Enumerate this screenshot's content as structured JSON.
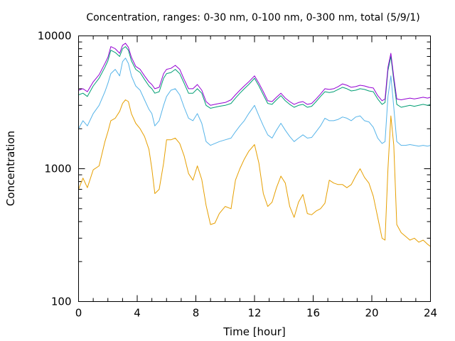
{
  "chart_data": {
    "type": "line",
    "title": "Concentration, ranges: 0-30 nm, 0-100 nm, 0-300 nm, total (5/9/1)",
    "xlabel": "Time [hour]",
    "ylabel": "Concentration",
    "xlim": [
      0,
      24
    ],
    "ylim": [
      100,
      10000
    ],
    "yscale": "log",
    "grid": false,
    "legend": "none",
    "xticks": [
      0,
      4,
      8,
      12,
      16,
      20,
      24
    ],
    "xtick_labels": [
      "0",
      "4",
      "8",
      "12",
      "16",
      "20",
      "24"
    ],
    "yticks": [
      100,
      1000,
      10000
    ],
    "ytick_labels": [
      "100",
      "1000",
      "10000"
    ],
    "series": [
      {
        "color": "#e69f00",
        "x": [
          0,
          0.3,
          0.6,
          1,
          1.4,
          1.8,
          2,
          2.2,
          2.5,
          2.8,
          3,
          3.2,
          3.4,
          3.6,
          3.9,
          4.2,
          4.5,
          4.8,
          5,
          5.2,
          5.5,
          5.8,
          6,
          6.3,
          6.6,
          6.9,
          7.2,
          7.5,
          7.8,
          8.1,
          8.4,
          8.7,
          9,
          9.3,
          9.6,
          10,
          10.4,
          10.7,
          11,
          11.3,
          11.6,
          12,
          12.3,
          12.6,
          12.9,
          13.2,
          13.5,
          13.8,
          14.1,
          14.4,
          14.7,
          15,
          15.3,
          15.6,
          15.9,
          16.2,
          16.5,
          16.8,
          17.1,
          17.4,
          17.7,
          18,
          18.3,
          18.6,
          18.9,
          19.2,
          19.5,
          19.8,
          20.1,
          20.4,
          20.7,
          20.9,
          21.1,
          21.3,
          21.5,
          21.7,
          22,
          22.3,
          22.6,
          22.9,
          23.2,
          23.5,
          23.8,
          24
        ],
        "values": [
          700,
          850,
          720,
          980,
          1050,
          1600,
          1900,
          2300,
          2400,
          2700,
          3100,
          3300,
          3200,
          2600,
          2200,
          2000,
          1750,
          1400,
          1000,
          650,
          700,
          1100,
          1650,
          1650,
          1700,
          1550,
          1250,
          920,
          820,
          1050,
          830,
          530,
          380,
          390,
          460,
          520,
          500,
          820,
          1000,
          1180,
          1350,
          1520,
          1100,
          650,
          520,
          560,
          720,
          880,
          780,
          520,
          430,
          560,
          640,
          460,
          450,
          480,
          500,
          550,
          820,
          780,
          760,
          760,
          720,
          760,
          880,
          1000,
          860,
          780,
          620,
          430,
          300,
          290,
          1000,
          2500,
          1500,
          380,
          330,
          310,
          290,
          300,
          280,
          290,
          270,
          260
        ]
      },
      {
        "color": "#56b4e9",
        "x": [
          0,
          0.3,
          0.6,
          1,
          1.4,
          1.8,
          2,
          2.2,
          2.5,
          2.8,
          3,
          3.2,
          3.4,
          3.6,
          3.9,
          4.2,
          4.5,
          4.8,
          5,
          5.2,
          5.5,
          5.8,
          6,
          6.3,
          6.6,
          6.9,
          7.2,
          7.5,
          7.8,
          8.1,
          8.4,
          8.7,
          9,
          9.3,
          9.6,
          10,
          10.4,
          10.7,
          11,
          11.3,
          11.6,
          12,
          12.3,
          12.6,
          12.9,
          13.2,
          13.5,
          13.8,
          14.1,
          14.4,
          14.7,
          15,
          15.3,
          15.6,
          15.9,
          16.2,
          16.5,
          16.8,
          17.1,
          17.4,
          17.7,
          18,
          18.3,
          18.6,
          18.9,
          19.2,
          19.5,
          19.8,
          20.1,
          20.4,
          20.7,
          20.9,
          21.1,
          21.3,
          21.5,
          21.7,
          22,
          22.3,
          22.6,
          22.9,
          23.2,
          23.5,
          23.8,
          24
        ],
        "values": [
          2000,
          2300,
          2100,
          2600,
          3000,
          3800,
          4400,
          5200,
          5600,
          5000,
          6400,
          6800,
          6200,
          5000,
          4200,
          3900,
          3300,
          2800,
          2600,
          2100,
          2300,
          3000,
          3500,
          3900,
          4000,
          3600,
          2900,
          2400,
          2300,
          2600,
          2200,
          1600,
          1500,
          1550,
          1600,
          1650,
          1700,
          1900,
          2100,
          2300,
          2600,
          3000,
          2500,
          2100,
          1800,
          1700,
          1950,
          2200,
          1950,
          1750,
          1600,
          1700,
          1800,
          1700,
          1720,
          1900,
          2100,
          2400,
          2300,
          2300,
          2350,
          2450,
          2400,
          2300,
          2450,
          2500,
          2300,
          2250,
          2050,
          1700,
          1550,
          1600,
          3500,
          5000,
          2900,
          1600,
          1500,
          1500,
          1520,
          1500,
          1480,
          1500,
          1480,
          1500
        ]
      },
      {
        "color": "#009e73",
        "x": [
          0,
          0.3,
          0.6,
          1,
          1.4,
          1.8,
          2,
          2.2,
          2.5,
          2.8,
          3,
          3.2,
          3.4,
          3.6,
          3.9,
          4.2,
          4.5,
          4.8,
          5,
          5.2,
          5.5,
          5.8,
          6,
          6.3,
          6.6,
          6.9,
          7.2,
          7.5,
          7.8,
          8.1,
          8.4,
          8.7,
          9,
          9.3,
          9.6,
          10,
          10.4,
          10.7,
          11,
          11.3,
          11.6,
          12,
          12.3,
          12.6,
          12.9,
          13.2,
          13.5,
          13.8,
          14.1,
          14.4,
          14.7,
          15,
          15.3,
          15.6,
          15.9,
          16.2,
          16.5,
          16.8,
          17.1,
          17.4,
          17.7,
          18,
          18.3,
          18.6,
          18.9,
          19.2,
          19.5,
          19.8,
          20.1,
          20.4,
          20.7,
          20.9,
          21.1,
          21.3,
          21.5,
          21.7,
          22,
          22.3,
          22.6,
          22.9,
          23.2,
          23.5,
          23.8,
          24
        ],
        "values": [
          3600,
          3700,
          3500,
          4200,
          4800,
          5800,
          6500,
          7800,
          7500,
          7000,
          8000,
          8300,
          7800,
          6500,
          5600,
          5300,
          4700,
          4200,
          4000,
          3700,
          3800,
          4800,
          5200,
          5300,
          5600,
          5200,
          4400,
          3700,
          3700,
          4000,
          3700,
          3000,
          2850,
          2900,
          2950,
          3000,
          3100,
          3400,
          3700,
          4000,
          4300,
          4800,
          4200,
          3600,
          3100,
          3050,
          3300,
          3550,
          3250,
          3050,
          2900,
          3000,
          3050,
          2900,
          2950,
          3200,
          3500,
          3800,
          3750,
          3800,
          3950,
          4100,
          4000,
          3850,
          3900,
          4000,
          3950,
          3850,
          3800,
          3350,
          3050,
          3150,
          5500,
          7000,
          4600,
          3050,
          2900,
          2950,
          3000,
          2950,
          3000,
          3050,
          3000,
          3050
        ]
      },
      {
        "color": "#9400d3",
        "x": [
          0,
          0.3,
          0.6,
          1,
          1.4,
          1.8,
          2,
          2.2,
          2.5,
          2.8,
          3,
          3.2,
          3.4,
          3.6,
          3.9,
          4.2,
          4.5,
          4.8,
          5,
          5.2,
          5.5,
          5.8,
          6,
          6.3,
          6.6,
          6.9,
          7.2,
          7.5,
          7.8,
          8.1,
          8.4,
          8.7,
          9,
          9.3,
          9.6,
          10,
          10.4,
          10.7,
          11,
          11.3,
          11.6,
          12,
          12.3,
          12.6,
          12.9,
          13.2,
          13.5,
          13.8,
          14.1,
          14.4,
          14.7,
          15,
          15.3,
          15.6,
          15.9,
          16.2,
          16.5,
          16.8,
          17.1,
          17.4,
          17.7,
          18,
          18.3,
          18.6,
          18.9,
          19.2,
          19.5,
          19.8,
          20.1,
          20.4,
          20.7,
          20.9,
          21.1,
          21.3,
          21.5,
          21.7,
          22,
          22.3,
          22.6,
          22.9,
          23.2,
          23.5,
          23.8,
          24
        ],
        "values": [
          3900,
          4000,
          3800,
          4500,
          5100,
          6200,
          6900,
          8300,
          8000,
          7400,
          8500,
          8800,
          8200,
          6900,
          5900,
          5600,
          5000,
          4500,
          4300,
          4000,
          4100,
          5200,
          5600,
          5700,
          6000,
          5600,
          4700,
          4000,
          4000,
          4300,
          3900,
          3200,
          3000,
          3050,
          3100,
          3150,
          3300,
          3600,
          3900,
          4200,
          4500,
          5000,
          4400,
          3800,
          3250,
          3200,
          3450,
          3700,
          3400,
          3200,
          3050,
          3150,
          3200,
          3050,
          3100,
          3350,
          3650,
          4000,
          3950,
          4000,
          4150,
          4350,
          4250,
          4100,
          4150,
          4250,
          4200,
          4100,
          4050,
          3550,
          3250,
          3350,
          5800,
          7400,
          4900,
          3350,
          3300,
          3350,
          3400,
          3350,
          3400,
          3450,
          3400,
          3450
        ]
      }
    ]
  }
}
